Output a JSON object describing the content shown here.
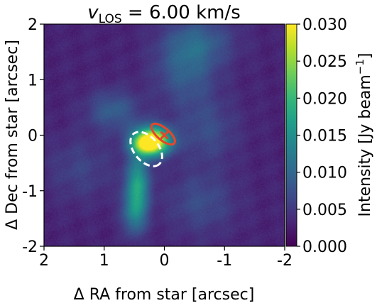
{
  "chart_data": {
    "type": "heatmap",
    "title": "v_LOS = 6.00 km/s",
    "title_parts": {
      "var": "v",
      "sub": "LOS",
      "rest": " = 6.00 km/s"
    },
    "xlabel": "Δ RA from star [arcsec]",
    "ylabel": "Δ Dec from star [arcsec]",
    "xlim": [
      2,
      -2
    ],
    "ylim": [
      -2,
      2
    ],
    "xticks": [
      "2",
      "1",
      "0",
      "-1",
      "-2"
    ],
    "yticks": [
      "2",
      "1",
      "0",
      "-1",
      "-2"
    ],
    "xtick_values": [
      2,
      1,
      0,
      -1,
      -2
    ],
    "ytick_values": [
      2,
      1,
      0,
      -1,
      -2
    ],
    "colormap": "viridis",
    "colorbar": {
      "label": "Intensity [Jy beam",
      "label_sup": "−1",
      "label_end": "]",
      "range": [
        0.0,
        0.03
      ],
      "ticks": [
        "0.030",
        "0.025",
        "0.020",
        "0.015",
        "0.010",
        "0.005",
        "0.000"
      ],
      "tick_values": [
        0.03,
        0.025,
        0.02,
        0.015,
        0.01,
        0.005,
        0.0
      ]
    },
    "background_level": 0.003,
    "emission_components": [
      {
        "name": "core",
        "x": 0.22,
        "y": -0.1,
        "sx": 0.22,
        "sy": 0.18,
        "peak": 0.03
      },
      {
        "name": "core-inner",
        "x": 0.3,
        "y": -0.18,
        "sx": 0.14,
        "sy": 0.11,
        "peak": 0.008
      },
      {
        "name": "southern-tail-upper",
        "x": 0.45,
        "y": -0.85,
        "sx": 0.14,
        "sy": 0.35,
        "peak": 0.013
      },
      {
        "name": "southern-tail-lower",
        "x": 0.5,
        "y": -1.4,
        "sx": 0.14,
        "sy": 0.28,
        "peak": 0.009
      },
      {
        "name": "arc-east",
        "x": 0.85,
        "y": 0.45,
        "sx": 0.3,
        "sy": 0.25,
        "peak": 0.006
      },
      {
        "name": "arc-north",
        "x": -0.35,
        "y": 1.2,
        "sx": 0.35,
        "sy": 0.45,
        "peak": 0.006
      },
      {
        "name": "arc-far-north",
        "x": -0.6,
        "y": 1.7,
        "sx": 0.4,
        "sy": 0.3,
        "peak": 0.005
      },
      {
        "name": "west-lobe",
        "x": -0.7,
        "y": 0.1,
        "sx": 0.35,
        "sy": 0.4,
        "peak": 0.004
      },
      {
        "name": "southwest-lobe",
        "x": -0.6,
        "y": -1.2,
        "sx": 0.4,
        "sy": 0.4,
        "peak": 0.004
      },
      {
        "name": "east-lobe",
        "x": 1.4,
        "y": -0.6,
        "sx": 0.4,
        "sy": 0.4,
        "peak": 0.003
      }
    ],
    "overlays": [
      {
        "name": "dashed-ellipse",
        "style": "dashed",
        "color": "#ffffff",
        "cx": 0.3,
        "cy": -0.25,
        "rx": 0.33,
        "ry": 0.22,
        "angle_deg": 50
      },
      {
        "name": "solid-ellipse",
        "style": "solid",
        "color": "#e8462a",
        "cx": 0.02,
        "cy": 0.02,
        "rx": 0.24,
        "ry": 0.11,
        "angle_deg": 40
      }
    ],
    "star_marker": {
      "x": 0.0,
      "y": 0.0,
      "color": "#e8462a"
    }
  }
}
